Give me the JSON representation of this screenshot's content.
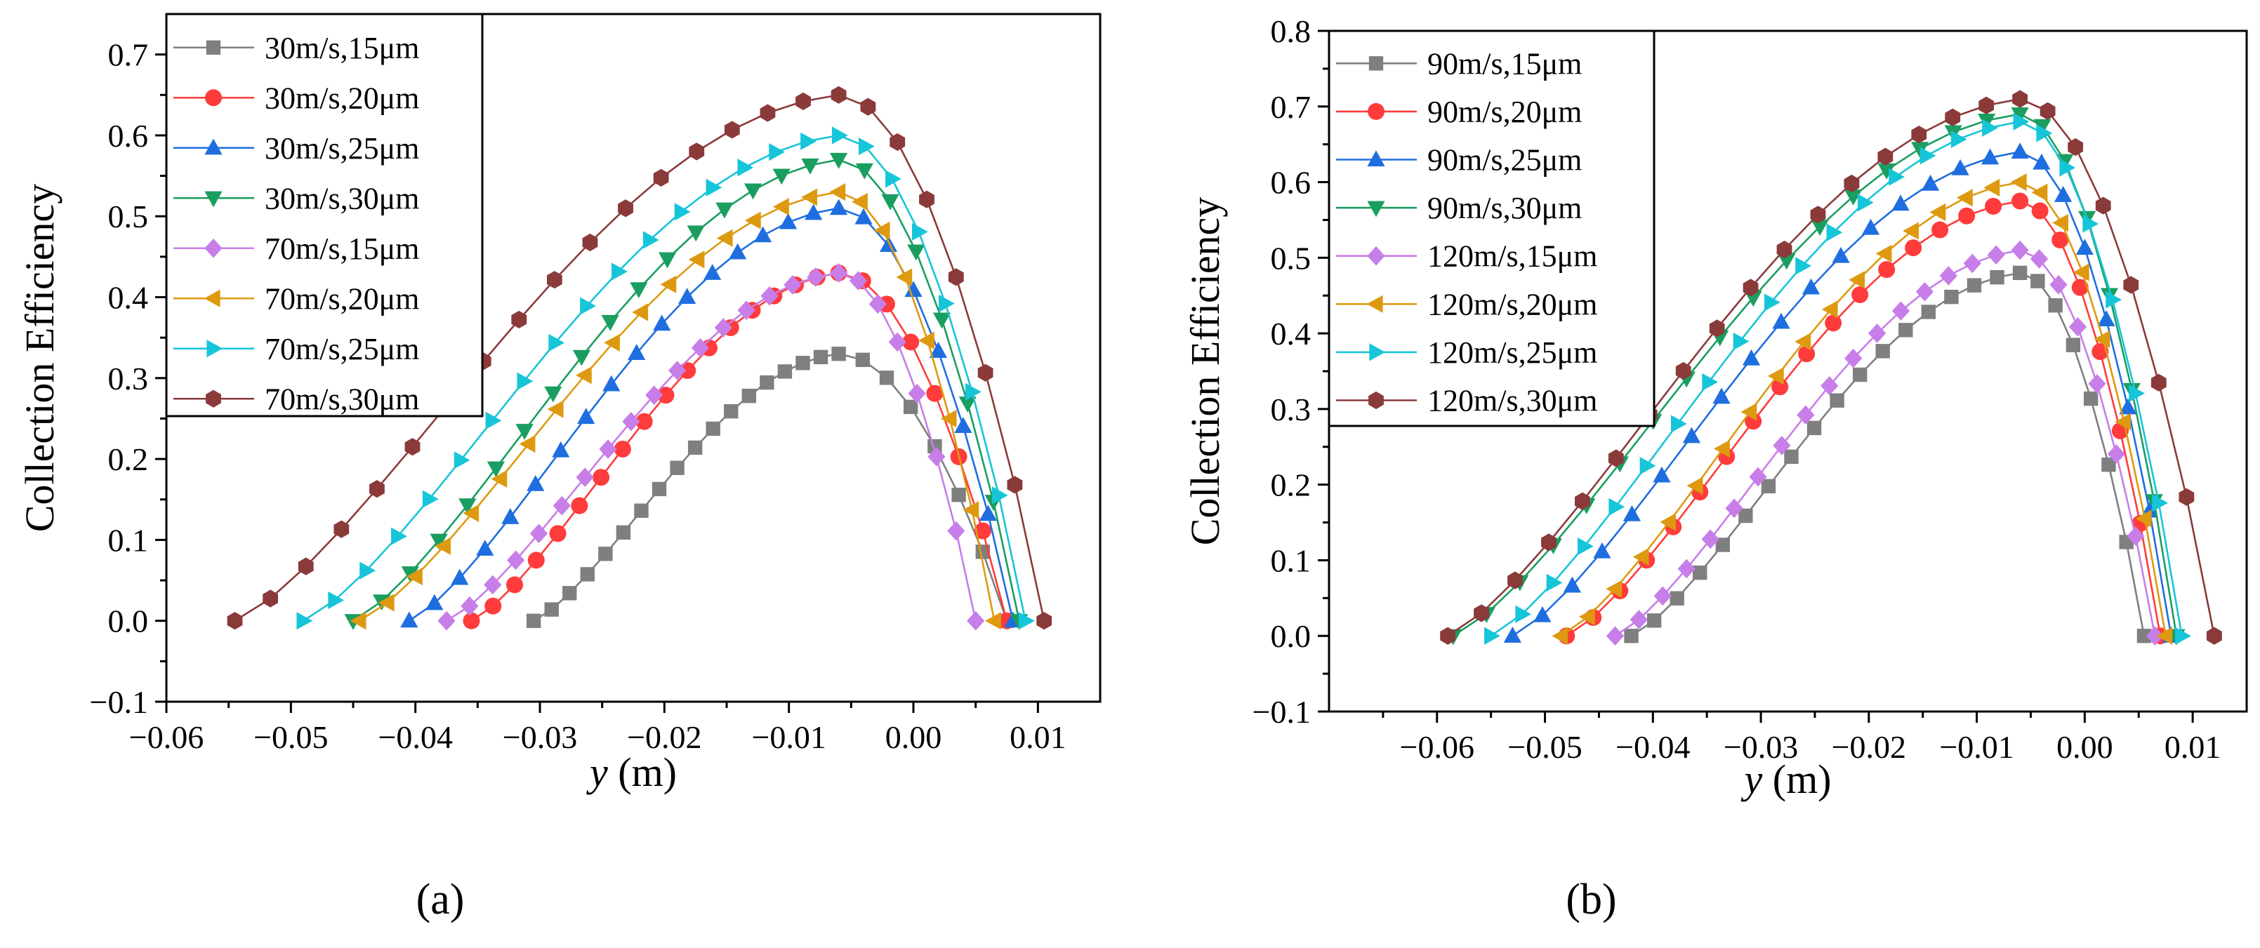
{
  "chart_data": [
    {
      "type": "line",
      "panel_label": "(a)",
      "xlabel_var": "y",
      "xlabel_unit": " (m)",
      "ylabel": "Collection Efficiency",
      "xlim": [
        -0.06,
        0.015
      ],
      "ylim": [
        -0.1,
        0.75
      ],
      "xticks": [
        -0.06,
        -0.05,
        -0.04,
        -0.03,
        -0.02,
        -0.01,
        0.0,
        0.01
      ],
      "xtick_labels": [
        "−0.06",
        "−0.05",
        "−0.04",
        "−0.03",
        "−0.02",
        "−0.01",
        "0.00",
        "0.01"
      ],
      "yticks": [
        -0.1,
        0.0,
        0.1,
        0.2,
        0.3,
        0.4,
        0.5,
        0.6,
        0.7
      ],
      "ytick_labels": [
        "−0.1",
        "0.0",
        "0.1",
        "0.2",
        "0.3",
        "0.4",
        "0.5",
        "0.6",
        "0.7"
      ],
      "legend_position": "top-left",
      "series": [
        {
          "name": "30m/s,15μm",
          "color": "#7f7f7f",
          "marker": "square",
          "peak_x": -0.006,
          "peak_y": 0.33,
          "x_start": -0.0305,
          "x_end": 0.0075
        },
        {
          "name": "30m/s,20μm",
          "color": "#ff3b3b",
          "marker": "circle",
          "peak_x": -0.006,
          "peak_y": 0.43,
          "x_start": -0.0355,
          "x_end": 0.0075
        },
        {
          "name": "30m/s,25μm",
          "color": "#1e6ee0",
          "marker": "triangle-up",
          "peak_x": -0.006,
          "peak_y": 0.51,
          "x_start": -0.0405,
          "x_end": 0.008
        },
        {
          "name": "30m/s,30μm",
          "color": "#1a9e60",
          "marker": "triangle-down",
          "peak_x": -0.006,
          "peak_y": 0.57,
          "x_start": -0.045,
          "x_end": 0.0085
        },
        {
          "name": "70m/s,15μm",
          "color": "#c77ee8",
          "marker": "diamond",
          "peak_x": -0.006,
          "peak_y": 0.43,
          "x_start": -0.0375,
          "x_end": 0.005
        },
        {
          "name": "70m/s,20μm",
          "color": "#dd9a10",
          "marker": "triangle-left",
          "peak_x": -0.006,
          "peak_y": 0.53,
          "x_start": -0.0445,
          "x_end": 0.0065
        },
        {
          "name": "70m/s,25μm",
          "color": "#17c5d8",
          "marker": "triangle-right",
          "peak_x": -0.006,
          "peak_y": 0.6,
          "x_start": -0.049,
          "x_end": 0.009
        },
        {
          "name": "70m/s,30μm",
          "color": "#8b3a3a",
          "marker": "hexagon",
          "peak_x": -0.006,
          "peak_y": 0.65,
          "x_start": -0.0545,
          "x_end": 0.0105
        }
      ]
    },
    {
      "type": "line",
      "panel_label": "(b)",
      "xlabel_var": "y",
      "xlabel_unit": " (m)",
      "ylabel": "Collection Efficiency",
      "xlim": [
        -0.07,
        0.015
      ],
      "ylim": [
        -0.1,
        0.8
      ],
      "xticks": [
        -0.06,
        -0.05,
        -0.04,
        -0.03,
        -0.02,
        -0.01,
        0.0,
        0.01
      ],
      "xtick_labels": [
        "−0.06",
        "−0.05",
        "−0.04",
        "−0.03",
        "−0.02",
        "−0.01",
        "0.00",
        "0.01"
      ],
      "yticks": [
        -0.1,
        0.0,
        0.1,
        0.2,
        0.3,
        0.4,
        0.5,
        0.6,
        0.7,
        0.8
      ],
      "ytick_labels": [
        "−0.1",
        "0.0",
        "0.1",
        "0.2",
        "0.3",
        "0.4",
        "0.5",
        "0.6",
        "0.7",
        "0.8"
      ],
      "legend_position": "top-left",
      "series": [
        {
          "name": "90m/s,15μm",
          "color": "#7f7f7f",
          "marker": "square",
          "peak_x": -0.006,
          "peak_y": 0.48,
          "x_start": -0.042,
          "x_end": 0.0055
        },
        {
          "name": "90m/s,20μm",
          "color": "#ff3b3b",
          "marker": "circle",
          "peak_x": -0.006,
          "peak_y": 0.575,
          "x_start": -0.048,
          "x_end": 0.007
        },
        {
          "name": "90m/s,25μm",
          "color": "#1e6ee0",
          "marker": "triangle-up",
          "peak_x": -0.006,
          "peak_y": 0.64,
          "x_start": -0.053,
          "x_end": 0.008
        },
        {
          "name": "90m/s,30μm",
          "color": "#1a9e60",
          "marker": "triangle-down",
          "peak_x": -0.006,
          "peak_y": 0.69,
          "x_start": -0.0585,
          "x_end": 0.0085
        },
        {
          "name": "120m/s,15μm",
          "color": "#c77ee8",
          "marker": "diamond",
          "peak_x": -0.006,
          "peak_y": 0.51,
          "x_start": -0.0435,
          "x_end": 0.0065
        },
        {
          "name": "120m/s,20μm",
          "color": "#dd9a10",
          "marker": "triangle-left",
          "peak_x": -0.006,
          "peak_y": 0.6,
          "x_start": -0.0485,
          "x_end": 0.0075
        },
        {
          "name": "120m/s,25μm",
          "color": "#17c5d8",
          "marker": "triangle-right",
          "peak_x": -0.006,
          "peak_y": 0.68,
          "x_start": -0.055,
          "x_end": 0.009
        },
        {
          "name": "120m/s,30μm",
          "color": "#8b3a3a",
          "marker": "hexagon",
          "peak_x": -0.006,
          "peak_y": 0.71,
          "x_start": -0.059,
          "x_end": 0.012
        }
      ]
    }
  ]
}
